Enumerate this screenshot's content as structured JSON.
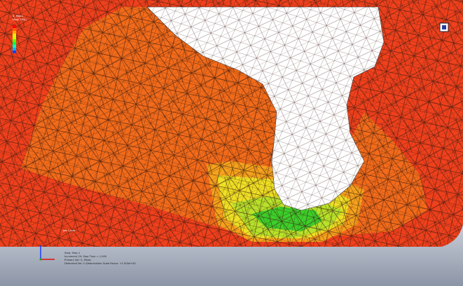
{
  "viewport": {
    "legend": {
      "title": "S, Mises",
      "subtitle": "(Avg: 75%)"
    },
    "info": {
      "model": "Job-1.odb",
      "step": "Step: Step-1",
      "increment": "Increment 20: Step Time = 1.000",
      "primary": "Primary Var: S, Mises",
      "deformed": "Deformed Var: U   Deformation Scale Factor: +1.000e+00"
    }
  }
}
